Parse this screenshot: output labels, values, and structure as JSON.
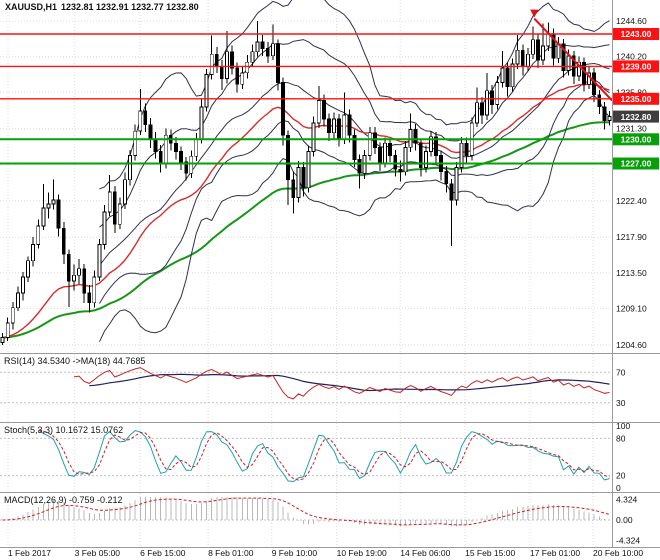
{
  "window": {
    "title_symbol": "XAUUSD,H1",
    "title_quotes": "1232.81 1232.91 1232.77 1232.80"
  },
  "colors": {
    "grid": "#DCDCDC",
    "level": "#C0C0C0",
    "separator": "#9A9A9A",
    "axis_text": "#111111",
    "bull": "#FFFFFF",
    "bear": "#000000",
    "wick": "#000000"
  },
  "x_axis": {
    "labels": [
      {
        "text": "1 Feb 2017",
        "pos": 0.013
      },
      {
        "text": "3 Feb 05:00",
        "pos": 0.122
      },
      {
        "text": "6 Feb 15:00",
        "pos": 0.229
      },
      {
        "text": "8 Feb 01:00",
        "pos": 0.34
      },
      {
        "text": "9 Feb 10:00",
        "pos": 0.444
      },
      {
        "text": "10 Feb 19:00",
        "pos": 0.55
      },
      {
        "text": "14 Feb 06:00",
        "pos": 0.654
      },
      {
        "text": "15 Feb 15:00",
        "pos": 0.76
      },
      {
        "text": "17 Feb 01:00",
        "pos": 0.866
      },
      {
        "text": "20 Feb 10:00",
        "pos": 0.969
      }
    ]
  },
  "chart_data": [
    {
      "id": "price",
      "type": "candlestick",
      "symbol": "XAUUSD",
      "timeframe": "H1",
      "open": 1232.81,
      "high": 1232.91,
      "low": 1232.77,
      "close": 1232.8,
      "ylim": [
        1203.6,
        1247.2
      ],
      "y_ticks": [
        1244.6,
        1240.2,
        1235.8,
        1231.3,
        1226.9,
        1222.4,
        1217.9,
        1213.5,
        1209.1,
        1204.6
      ],
      "indicators": {
        "bollinger": {
          "period": 20,
          "deviations": [
            1,
            2
          ],
          "color": "#30304E"
        },
        "ma_fast": {
          "method": "ema",
          "period": 30,
          "color": "#D62B2B"
        },
        "ma_slow": {
          "method": "ema",
          "period": 80,
          "color": "#169616"
        }
      },
      "h_lines": [
        {
          "price": 1243.0,
          "color": "#FF1111",
          "width": 1.4,
          "role": "resistance"
        },
        {
          "price": 1239.0,
          "color": "#FF1111",
          "width": 1.4,
          "role": "resistance"
        },
        {
          "price": 1235.0,
          "color": "#FF1111",
          "width": 1.4,
          "role": "resistance"
        },
        {
          "price": 1230.0,
          "color": "#07A007",
          "width": 2,
          "role": "support"
        },
        {
          "price": 1227.0,
          "color": "#07A007",
          "width": 2,
          "role": "support"
        }
      ],
      "price_tag": {
        "value": "1232.80",
        "bg": "#3E3E3E"
      },
      "trendline": {
        "x1_frac": 0.873,
        "p1": 1244.9,
        "x2_frac": 1.0,
        "p2": 1234.8,
        "color": "#E01212"
      },
      "ohlc": [
        [
          1204.9,
          1206.1,
          1204.6,
          1205.5
        ],
        [
          1205.5,
          1208.0,
          1205.1,
          1207.3
        ],
        [
          1207.3,
          1209.9,
          1206.5,
          1209.2
        ],
        [
          1209.2,
          1211.8,
          1208.8,
          1211.0
        ],
        [
          1211.0,
          1213.6,
          1210.1,
          1213.0
        ],
        [
          1213.0,
          1215.5,
          1212.4,
          1215.0
        ],
        [
          1215.0,
          1217.9,
          1214.3,
          1217.0
        ],
        [
          1217.0,
          1220.1,
          1216.5,
          1219.3
        ],
        [
          1219.3,
          1224.5,
          1218.8,
          1221.5
        ],
        [
          1221.5,
          1223.4,
          1220.2,
          1222.0
        ],
        [
          1222.0,
          1225.0,
          1221.3,
          1222.5
        ],
        [
          1222.5,
          1223.2,
          1218.0,
          1219.0
        ],
        [
          1219.0,
          1219.8,
          1214.6,
          1215.8
        ],
        [
          1215.8,
          1216.4,
          1209.3,
          1212.5
        ],
        [
          1212.5,
          1214.5,
          1211.3,
          1213.2
        ],
        [
          1213.2,
          1215.2,
          1212.1,
          1214.0
        ],
        [
          1214.0,
          1214.6,
          1209.8,
          1211.0
        ],
        [
          1211.0,
          1212.0,
          1208.6,
          1209.8
        ],
        [
          1209.8,
          1213.8,
          1209.2,
          1213.0
        ],
        [
          1213.0,
          1217.7,
          1212.5,
          1217.0
        ],
        [
          1217.0,
          1221.9,
          1216.4,
          1221.0
        ],
        [
          1221.0,
          1225.6,
          1220.5,
          1223.5
        ],
        [
          1223.5,
          1224.2,
          1218.4,
          1219.5
        ],
        [
          1219.5,
          1222.8,
          1218.9,
          1222.0
        ],
        [
          1222.0,
          1225.9,
          1221.4,
          1225.0
        ],
        [
          1225.0,
          1228.7,
          1224.3,
          1228.0
        ],
        [
          1228.0,
          1231.8,
          1227.4,
          1231.0
        ],
        [
          1231.0,
          1236.2,
          1230.5,
          1233.5
        ],
        [
          1233.5,
          1234.4,
          1230.9,
          1231.8
        ],
        [
          1231.8,
          1232.6,
          1228.9,
          1230.0
        ],
        [
          1230.0,
          1230.9,
          1227.6,
          1228.5
        ],
        [
          1228.5,
          1229.3,
          1225.9,
          1227.0
        ],
        [
          1227.0,
          1231.3,
          1226.4,
          1230.5
        ],
        [
          1230.5,
          1231.2,
          1228.6,
          1229.5
        ],
        [
          1229.5,
          1230.3,
          1227.5,
          1228.5
        ],
        [
          1228.5,
          1229.1,
          1226.2,
          1227.2
        ],
        [
          1227.2,
          1227.8,
          1224.9,
          1225.8
        ],
        [
          1225.8,
          1228.6,
          1225.2,
          1227.9
        ],
        [
          1227.9,
          1230.8,
          1227.3,
          1230.0
        ],
        [
          1230.0,
          1234.9,
          1229.5,
          1234.0
        ],
        [
          1234.0,
          1238.7,
          1233.4,
          1238.0
        ],
        [
          1238.0,
          1242.8,
          1237.4,
          1240.5
        ],
        [
          1240.5,
          1241.4,
          1238.2,
          1239.0
        ],
        [
          1239.0,
          1239.8,
          1236.1,
          1237.5
        ],
        [
          1237.5,
          1243.4,
          1236.9,
          1240.8
        ],
        [
          1240.8,
          1241.6,
          1238.0,
          1238.8
        ],
        [
          1238.8,
          1239.5,
          1235.8,
          1236.8
        ],
        [
          1236.8,
          1239.0,
          1236.2,
          1238.2
        ],
        [
          1238.2,
          1240.4,
          1237.5,
          1239.5
        ],
        [
          1239.5,
          1241.7,
          1238.9,
          1240.8
        ],
        [
          1240.8,
          1244.6,
          1240.2,
          1242.0
        ],
        [
          1242.0,
          1242.9,
          1240.3,
          1241.2
        ],
        [
          1241.2,
          1242.0,
          1239.4,
          1240.3
        ],
        [
          1240.3,
          1244.2,
          1239.8,
          1241.8
        ],
        [
          1241.8,
          1242.3,
          1236.0,
          1237.0
        ],
        [
          1237.0,
          1237.6,
          1229.2,
          1230.5
        ],
        [
          1230.5,
          1231.1,
          1221.9,
          1225.0
        ],
        [
          1225.0,
          1226.0,
          1220.8,
          1222.8
        ],
        [
          1222.8,
          1227.3,
          1222.2,
          1226.5
        ],
        [
          1226.5,
          1227.2,
          1222.9,
          1224.0
        ],
        [
          1224.0,
          1229.2,
          1223.4,
          1228.5
        ],
        [
          1228.5,
          1232.8,
          1227.9,
          1232.0
        ],
        [
          1232.0,
          1236.6,
          1231.4,
          1234.8
        ],
        [
          1234.8,
          1235.5,
          1231.6,
          1232.5
        ],
        [
          1232.5,
          1233.2,
          1229.8,
          1230.8
        ],
        [
          1230.8,
          1233.3,
          1230.1,
          1232.5
        ],
        [
          1232.5,
          1233.1,
          1229.1,
          1230.0
        ],
        [
          1230.0,
          1235.8,
          1229.4,
          1233.0
        ],
        [
          1233.0,
          1233.7,
          1229.6,
          1230.5
        ],
        [
          1230.5,
          1231.2,
          1226.6,
          1227.5
        ],
        [
          1227.5,
          1228.1,
          1223.9,
          1225.8
        ],
        [
          1225.8,
          1228.7,
          1225.1,
          1228.0
        ],
        [
          1228.0,
          1231.5,
          1227.4,
          1230.8
        ],
        [
          1230.8,
          1231.5,
          1228.2,
          1229.0
        ],
        [
          1229.0,
          1229.6,
          1226.1,
          1227.0
        ],
        [
          1227.0,
          1230.2,
          1226.5,
          1229.5
        ],
        [
          1229.5,
          1230.1,
          1227.2,
          1228.0
        ],
        [
          1228.0,
          1228.7,
          1225.4,
          1226.3
        ],
        [
          1226.3,
          1227.4,
          1224.8,
          1226.0
        ],
        [
          1226.0,
          1229.8,
          1225.5,
          1229.0
        ],
        [
          1229.0,
          1233.2,
          1228.4,
          1231.2
        ],
        [
          1231.2,
          1231.9,
          1228.6,
          1229.5
        ],
        [
          1229.5,
          1230.1,
          1225.4,
          1226.5
        ],
        [
          1226.5,
          1229.2,
          1225.9,
          1228.5
        ],
        [
          1228.5,
          1231.0,
          1227.9,
          1230.3
        ],
        [
          1230.3,
          1230.9,
          1227.1,
          1228.0
        ],
        [
          1228.0,
          1228.6,
          1224.9,
          1226.0
        ],
        [
          1226.0,
          1226.7,
          1223.4,
          1224.5
        ],
        [
          1224.5,
          1225.1,
          1216.8,
          1222.5
        ],
        [
          1222.5,
          1227.2,
          1221.8,
          1226.5
        ],
        [
          1226.5,
          1230.3,
          1225.9,
          1229.5
        ],
        [
          1229.5,
          1230.2,
          1226.9,
          1228.0
        ],
        [
          1228.0,
          1232.7,
          1227.4,
          1232.0
        ],
        [
          1232.0,
          1236.4,
          1231.5,
          1234.5
        ],
        [
          1234.5,
          1235.2,
          1231.9,
          1233.0
        ],
        [
          1233.0,
          1238.2,
          1232.4,
          1236.0
        ],
        [
          1236.0,
          1236.7,
          1233.1,
          1234.3
        ],
        [
          1234.3,
          1237.8,
          1233.7,
          1237.0
        ],
        [
          1237.0,
          1240.9,
          1236.4,
          1238.8
        ],
        [
          1238.8,
          1239.5,
          1235.3,
          1236.5
        ],
        [
          1236.5,
          1240.0,
          1235.9,
          1239.3
        ],
        [
          1239.3,
          1242.9,
          1238.7,
          1241.0
        ],
        [
          1241.0,
          1241.7,
          1237.9,
          1239.0
        ],
        [
          1239.0,
          1241.3,
          1238.4,
          1240.5
        ],
        [
          1240.5,
          1243.9,
          1239.9,
          1242.3
        ],
        [
          1242.3,
          1243.0,
          1238.8,
          1239.8
        ],
        [
          1239.8,
          1244.3,
          1239.2,
          1241.5
        ],
        [
          1241.5,
          1244.4,
          1240.9,
          1243.0
        ],
        [
          1243.0,
          1243.7,
          1239.1,
          1240.0
        ],
        [
          1240.0,
          1242.6,
          1239.4,
          1241.8
        ],
        [
          1241.8,
          1242.4,
          1237.6,
          1238.5
        ],
        [
          1238.5,
          1241.1,
          1237.9,
          1240.3
        ],
        [
          1240.3,
          1240.9,
          1236.8,
          1237.8
        ],
        [
          1237.8,
          1240.2,
          1237.2,
          1239.5
        ],
        [
          1239.5,
          1240.1,
          1235.9,
          1236.8
        ],
        [
          1236.8,
          1239.0,
          1236.2,
          1238.2
        ],
        [
          1238.2,
          1238.8,
          1234.6,
          1235.5
        ],
        [
          1235.5,
          1236.1,
          1233.1,
          1234.0
        ],
        [
          1234.0,
          1234.6,
          1231.2,
          1232.3
        ],
        [
          1232.3,
          1233.5,
          1231.7,
          1232.8
        ]
      ]
    },
    {
      "id": "rsi",
      "type": "line",
      "label": "RSI(14) 34.5340 ->MA(18) 44.7685",
      "period": 14,
      "ma_period": 18,
      "value": 34.534,
      "ma_value": 44.7685,
      "levels": [
        70,
        30
      ],
      "ylim": [
        10,
        90
      ],
      "colors": {
        "main": "#C22424",
        "ma": "#20205E"
      }
    },
    {
      "id": "stochastic",
      "type": "line",
      "label": "Stoch(5,3,3) 10.1672 15.0762",
      "k_period": 5,
      "slowing": 3,
      "d_period": 3,
      "value": 10.1672,
      "signal_value": 15.0762,
      "levels": [
        80,
        20
      ],
      "axis_ticks": [
        {
          "v": 100,
          "t": "100"
        },
        {
          "v": 80,
          "t": "80"
        },
        {
          "v": 20,
          "t": "20"
        },
        {
          "v": 0,
          "t": "0"
        }
      ],
      "ylim": [
        0,
        100
      ],
      "colors": {
        "main": "#1FA3A8",
        "signal": "#CC2020"
      }
    },
    {
      "id": "macd",
      "type": "bar",
      "label": "MACD(12,26,9) -0.759 -0.212",
      "fast": 12,
      "slow": 26,
      "signal": 9,
      "value": -0.759,
      "signal_value": -0.212,
      "axis_ticks": [
        {
          "v": 4.324,
          "t": "4.324"
        },
        {
          "v": 0,
          "t": "0.00"
        },
        {
          "v": -4.324,
          "t": "-4.324"
        }
      ],
      "ylim": [
        -4.8,
        4.8
      ],
      "colors": {
        "hist": "#B8B8B8",
        "signal": "#CC2020"
      }
    }
  ]
}
